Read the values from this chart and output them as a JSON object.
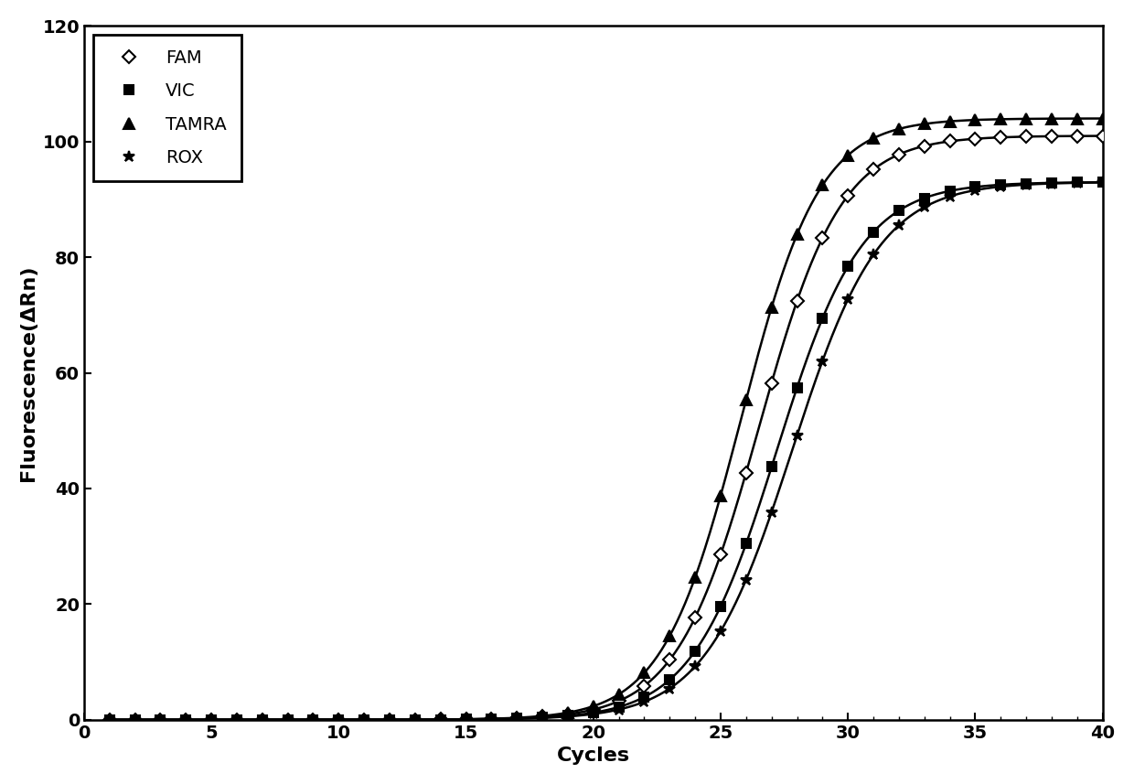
{
  "title": "",
  "xlabel": "Cycles",
  "ylabel": "Fluorescence(ΔRn)",
  "xlim": [
    0,
    40
  ],
  "ylim": [
    0,
    120
  ],
  "xticks": [
    0,
    5,
    10,
    15,
    20,
    25,
    30,
    35,
    40
  ],
  "yticks": [
    0,
    20,
    40,
    60,
    80,
    100,
    120
  ],
  "series": [
    {
      "label": "FAM",
      "marker": "D",
      "markersize": 7,
      "marker_filled": false,
      "color": "black",
      "linewidth": 1.8,
      "L": 101,
      "k": 0.62,
      "x0": 26.5,
      "baseline": 0.0
    },
    {
      "label": "VIC",
      "marker": "s",
      "markersize": 7,
      "marker_filled": true,
      "color": "black",
      "linewidth": 1.8,
      "L": 93,
      "k": 0.6,
      "x0": 27.2,
      "baseline": 0.0
    },
    {
      "label": "TAMRA",
      "marker": "^",
      "markersize": 8,
      "marker_filled": true,
      "color": "black",
      "linewidth": 1.8,
      "L": 104,
      "k": 0.65,
      "x0": 25.8,
      "baseline": 0.0
    },
    {
      "label": "ROX",
      "marker": "*",
      "markersize": 9,
      "marker_filled": true,
      "color": "black",
      "linewidth": 1.8,
      "L": 93,
      "k": 0.58,
      "x0": 27.8,
      "baseline": 0.0
    }
  ],
  "background_color": "#ffffff",
  "legend_fontsize": 14,
  "axis_label_fontsize": 16,
  "tick_fontsize": 14,
  "x_min": 1,
  "x_max": 40
}
